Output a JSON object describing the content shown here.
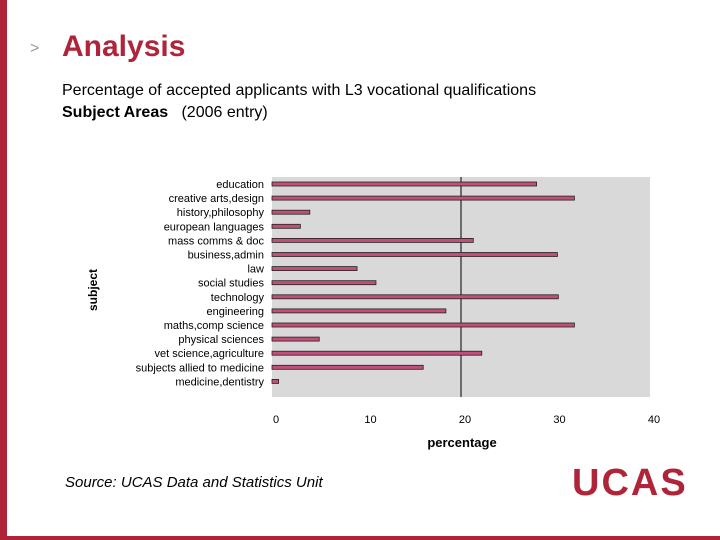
{
  "slide": {
    "title": "Analysis",
    "subtitle": "Percentage of accepted applicants with L3 vocational qualifications",
    "subtitle2_bold": "Subject Areas",
    "subtitle2_rest": "(2006 entry)",
    "source": "Source:  UCAS Data and Statistics Unit",
    "logo_text": "UCAS",
    "chevron": ">"
  },
  "colors": {
    "accent": "#b0243a",
    "bar_fill": "#c0507a",
    "plot_bg": "#d9d9d9"
  },
  "chart_data": {
    "type": "bar",
    "orientation": "horizontal",
    "categories": [
      "education",
      "creative arts,design",
      "history,philosophy",
      "european languages",
      "mass comms & doc",
      "business,admin",
      "law",
      "social studies",
      "technology",
      "engineering",
      "maths,comp science",
      "physical sciences",
      "vet science,agriculture",
      "subjects allied to medicine",
      "medicine,dentistry"
    ],
    "values": [
      28,
      32,
      4,
      3,
      21.3,
      30.2,
      9,
      11,
      30.3,
      18.4,
      32,
      5,
      22.2,
      16,
      0.7
    ],
    "xlabel": "percentage",
    "ylabel": "subject",
    "xlim": [
      0,
      40
    ],
    "xticks": [
      "0",
      "10",
      "20",
      "30",
      "40"
    ],
    "reference_line_x": 20
  }
}
